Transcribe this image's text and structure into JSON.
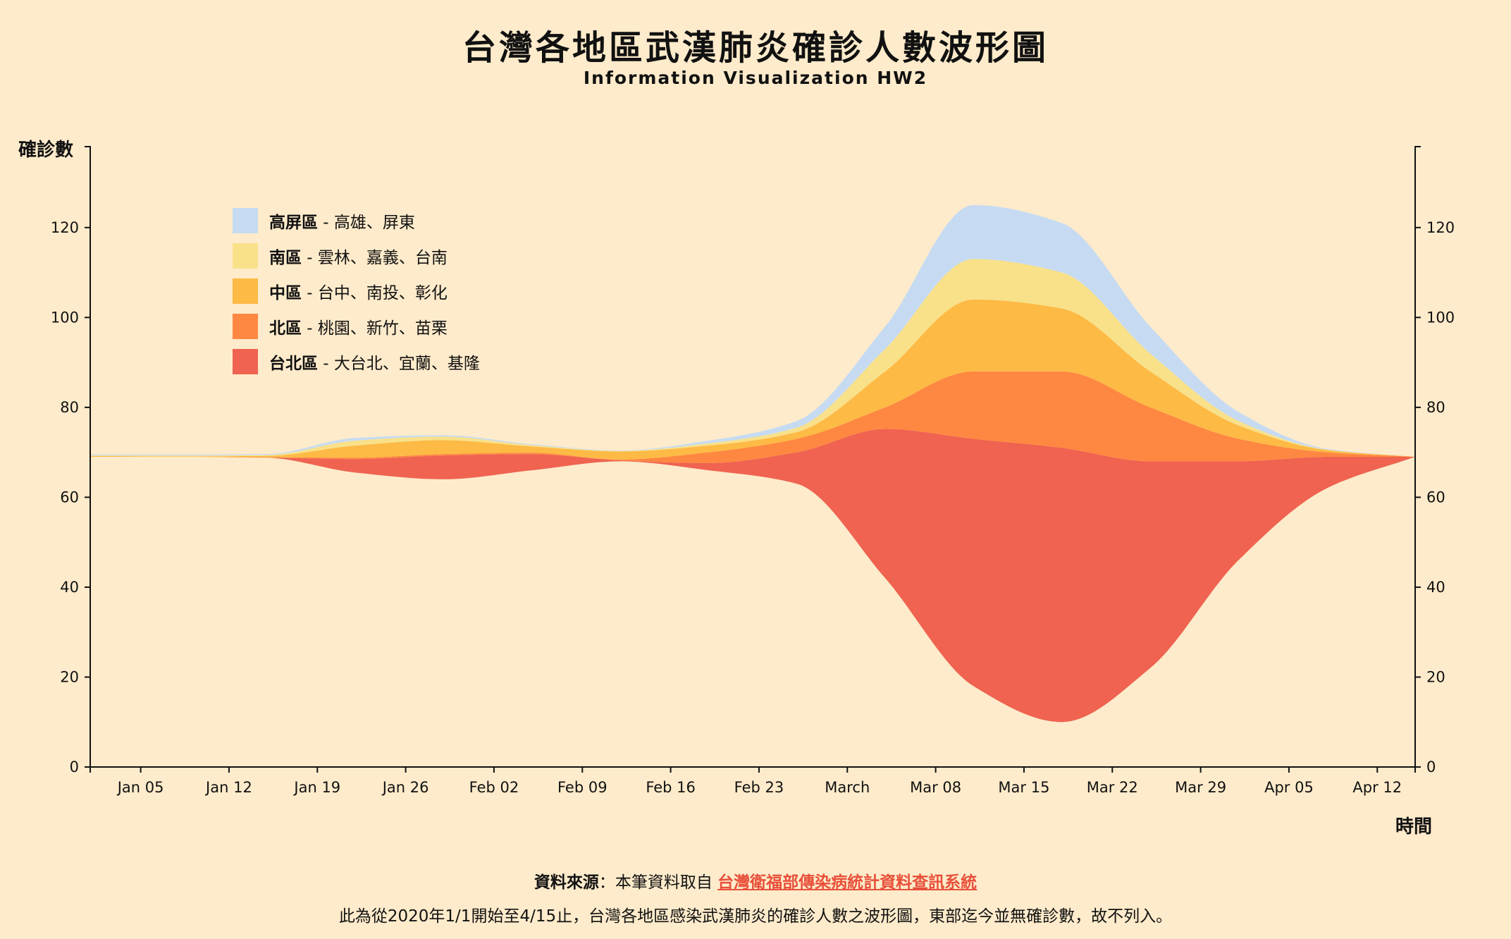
{
  "header": {
    "title": "台灣各地區武漢肺炎確診人數波形圖",
    "subtitle": "Information Visualization HW2"
  },
  "legend": [
    {
      "name": "高屏區",
      "areas": " - 高雄、屏東",
      "color": "#C6DBF2"
    },
    {
      "name": "南區",
      "areas": " - 雲林、嘉義、台南",
      "color": "#F9E18A"
    },
    {
      "name": "中區",
      "areas": " - 台中、南投、彰化",
      "color": "#FDBA45"
    },
    {
      "name": "北區",
      "areas": " - 桃園、新竹、苗栗",
      "color": "#FE8741"
    },
    {
      "name": "台北區",
      "areas": " - 大台北、宜蘭、基隆",
      "color": "#EF6350"
    }
  ],
  "footer": {
    "source_label": "資料來源",
    "source_text": "：本筆資料取自 ",
    "source_link": "台灣衛福部傳染病統計資料查訊系統",
    "note": "此為從2020年1/1開始至4/15止，台灣各地區感染武漢肺炎的確診人數之波形圖，東部迄今並無確診數，故不列入。"
  },
  "chart_data": {
    "type": "area",
    "subtype": "streamgraph",
    "ylabel": "確診數",
    "xlabel": "時間",
    "ylim": [
      0,
      138
    ],
    "y_ticks": [
      0,
      20,
      40,
      60,
      80,
      100,
      120
    ],
    "x_tick_labels": [
      "Jan 05",
      "Jan 12",
      "Jan 19",
      "Jan 26",
      "Feb 02",
      "Feb 09",
      "Feb 16",
      "Feb 23",
      "March",
      "Mar 08",
      "Mar 15",
      "Mar 22",
      "Mar 29",
      "Apr 05",
      "Apr 12"
    ],
    "x_tick_dates": [
      "2020-01-05",
      "2020-01-12",
      "2020-01-19",
      "2020-01-26",
      "2020-02-02",
      "2020-02-09",
      "2020-02-16",
      "2020-02-23",
      "2020-03-01",
      "2020-03-08",
      "2020-03-15",
      "2020-03-22",
      "2020-03-29",
      "2020-04-05",
      "2020-04-12"
    ],
    "x_domain": [
      "2020-01-01",
      "2020-04-15"
    ],
    "x": [
      "2020-01-01",
      "2020-01-08",
      "2020-01-15",
      "2020-01-22",
      "2020-01-29",
      "2020-02-05",
      "2020-02-12",
      "2020-02-19",
      "2020-02-26",
      "2020-03-04",
      "2020-03-11",
      "2020-03-18",
      "2020-03-25",
      "2020-04-01",
      "2020-04-08",
      "2020-04-15"
    ],
    "series": [
      {
        "name": "台北區",
        "color": "#EF6350",
        "y0": [
          69,
          69,
          68.8,
          65.5,
          64,
          66,
          68,
          66,
          63,
          42,
          18,
          10,
          22,
          46,
          62,
          69
        ],
        "y1": [
          69,
          69,
          68.8,
          68.5,
          69.3,
          69.6,
          68.2,
          67.6,
          70,
          75.2,
          73,
          71,
          68,
          68,
          69,
          69
        ]
      },
      {
        "name": "北區",
        "color": "#FE8741",
        "y0": [
          69,
          69,
          68.8,
          68.5,
          69.3,
          69.6,
          68.2,
          67.6,
          70,
          75.2,
          73,
          71,
          68,
          68,
          69,
          69
        ],
        "y1": [
          69,
          69,
          68.9,
          68.8,
          69.6,
          69.9,
          68.4,
          70,
          73,
          80,
          88,
          88,
          80,
          73,
          70,
          69
        ]
      },
      {
        "name": "中區",
        "color": "#FDBA45",
        "y0": [
          69,
          69,
          68.9,
          68.8,
          69.6,
          69.9,
          68.4,
          70,
          73,
          80,
          88,
          88,
          80,
          73,
          70,
          69
        ],
        "y1": [
          69.2,
          69.1,
          69.2,
          71.5,
          72.7,
          71.3,
          70.2,
          71.5,
          74.5,
          88,
          104,
          102,
          88,
          76,
          70.5,
          69
        ]
      },
      {
        "name": "南區",
        "color": "#F9E18A",
        "y0": [
          69.2,
          69.1,
          69.2,
          71.5,
          72.7,
          71.3,
          70.2,
          71.5,
          74.5,
          88,
          104,
          102,
          88,
          76,
          70.5,
          69
        ],
        "y1": [
          69.3,
          69.3,
          69.4,
          72.6,
          73.5,
          71.6,
          70.3,
          72,
          75.5,
          93,
          113,
          110,
          92,
          77,
          70.6,
          69
        ]
      },
      {
        "name": "高屏區",
        "color": "#C6DBF2",
        "y0": [
          69.3,
          69.3,
          69.4,
          72.6,
          73.5,
          71.6,
          70.3,
          72,
          75.5,
          93,
          113,
          110,
          92,
          77,
          70.6,
          69
        ],
        "y1": [
          69.5,
          69.5,
          69.6,
          73.2,
          73.8,
          71.8,
          70.4,
          72.6,
          77,
          98,
          125,
          121,
          98,
          79,
          70.8,
          69
        ]
      }
    ]
  }
}
